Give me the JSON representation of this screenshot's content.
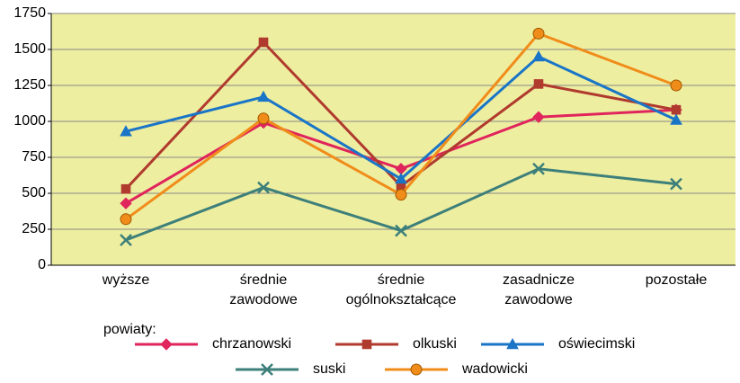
{
  "chart_data": {
    "type": "line",
    "categories": [
      [
        "wyższe"
      ],
      [
        "średnie",
        "zawodowe"
      ],
      [
        "średnie",
        "ogólnokształcące"
      ],
      [
        "zasadnicze",
        "zawodowe"
      ],
      [
        "pozostałe"
      ]
    ],
    "series": [
      {
        "name": "chrzanowski",
        "color": "#e0245c",
        "marker": "diamond",
        "values": [
          430,
          990,
          670,
          1030,
          1080
        ]
      },
      {
        "name": "olkuski",
        "color": "#b03a2e",
        "marker": "square",
        "values": [
          530,
          1550,
          550,
          1260,
          1080
        ]
      },
      {
        "name": "oświecimski",
        "color": "#1a75c7",
        "marker": "triangle",
        "values": [
          930,
          1170,
          600,
          1450,
          1010
        ]
      },
      {
        "name": "suski",
        "color": "#3d7f7a",
        "marker": "x",
        "values": [
          175,
          540,
          240,
          670,
          565
        ]
      },
      {
        "name": "wadowicki",
        "color": "#f08c1a",
        "marker": "circle",
        "values": [
          320,
          1020,
          490,
          1610,
          1250
        ]
      }
    ],
    "legend_title": "powiaty:",
    "ylim": [
      0,
      1750
    ],
    "yticks": [
      0,
      250,
      500,
      750,
      1000,
      1250,
      1500,
      1750
    ],
    "grid": true
  }
}
